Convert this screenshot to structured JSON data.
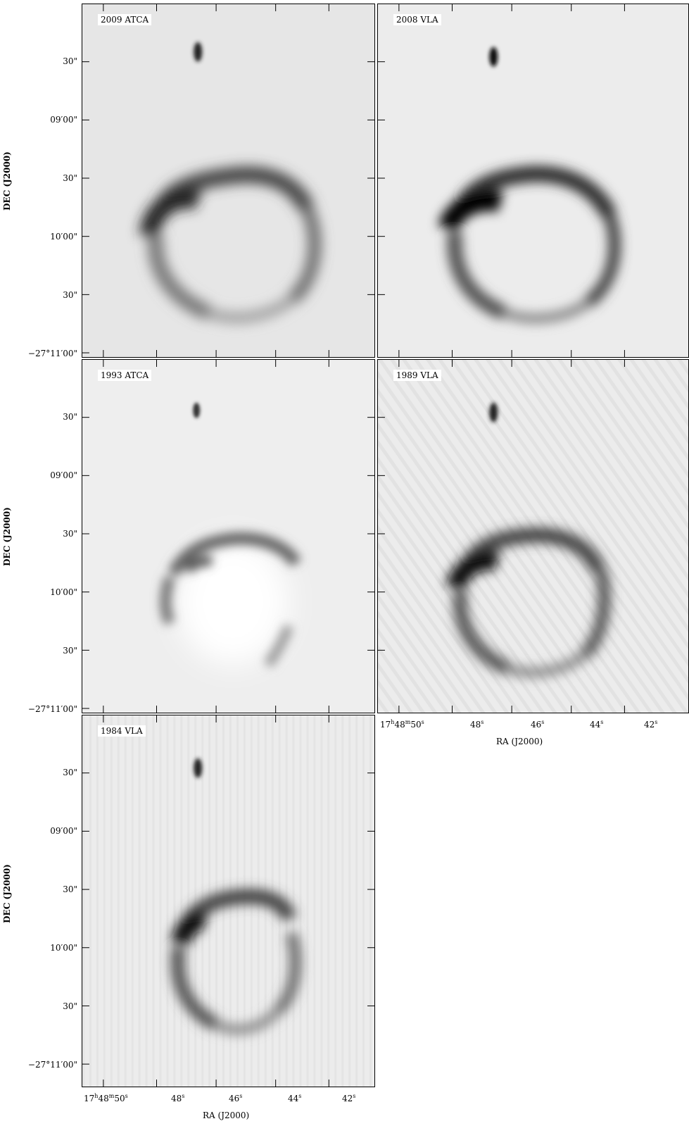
{
  "panels": [
    {
      "label": "2009 ATCA"
    },
    {
      "label": "2008 VLA"
    },
    {
      "label": "1993 ATCA"
    },
    {
      "label": "1989 VLA"
    },
    {
      "label": "1984 VLA"
    }
  ],
  "y_ticks": [
    "30\"",
    "09′00\"",
    "30\"",
    "10′00\"",
    "30\"",
    "−27°11′00\""
  ],
  "y_axis_label": "DEC (J2000)",
  "x_ticks": [
    {
      "main": "17",
      "sup1": "h",
      "mid": "48",
      "sup2": "m",
      "end": "50",
      "sup3": "s"
    },
    {
      "main": "48",
      "sup1": "s"
    },
    {
      "main": "46",
      "sup1": "s"
    },
    {
      "main": "44",
      "sup1": "s"
    },
    {
      "main": "42",
      "sup1": "s"
    }
  ],
  "x_axis_label": "RA (J2000)"
}
